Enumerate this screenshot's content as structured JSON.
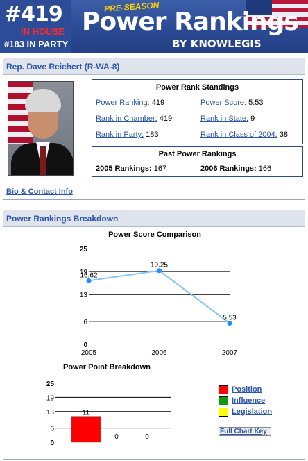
{
  "banner": {
    "rank_number": "#419",
    "rank_scope": "IN HOUSE",
    "party_rank": "#183 IN PARTY",
    "pre_season": "PRE-SEASON",
    "title": "Power Rankings",
    "subtitle": "BY KNOWLEGIS"
  },
  "profile": {
    "heading": "Rep. Dave Reichert (R-WA-8)",
    "bio_link": "Bio & Contact Info",
    "standings": {
      "title": "Power Rank Standings",
      "items": [
        {
          "label": "Power Ranking:",
          "value": "419"
        },
        {
          "label": "Power Score:",
          "value": "5.53"
        },
        {
          "label": "Rank in Chamber:",
          "value": "419"
        },
        {
          "label": "Rank in State:",
          "value": "9"
        },
        {
          "label": "Rank in Party:",
          "value": "183"
        },
        {
          "label": "Rank in Class of 2004:",
          "value": "38"
        }
      ]
    },
    "past": {
      "title": "Past Power Rankings",
      "items": [
        {
          "label": "2005 Rankings:",
          "value": "167"
        },
        {
          "label": "2006 Rankings:",
          "value": "166"
        }
      ]
    }
  },
  "breakdown": {
    "heading": "Power Rankings Breakdown",
    "legend": [
      {
        "label": "Position",
        "color": "#ff0000"
      },
      {
        "label": "Influence",
        "color": "#119911"
      },
      {
        "label": "Legislation",
        "color": "#ffff00"
      }
    ],
    "full_key": "Full Chart Key"
  },
  "chart_data": [
    {
      "type": "line",
      "title": "Power Score Comparison",
      "x": [
        "2005",
        "2006",
        "2007"
      ],
      "series": [
        {
          "values": [
            16.62,
            19.25,
            5.53
          ]
        }
      ],
      "data_labels": [
        "16.62",
        "19.25",
        "5.53"
      ],
      "y_ticks": [
        "25",
        "19",
        "13",
        "6",
        "0"
      ],
      "y_tick_values": [
        25,
        19,
        13,
        6,
        0
      ],
      "ylim": [
        0,
        25
      ],
      "grid": true,
      "line_color": "#88c4ee",
      "point_color": "#1e90ff"
    },
    {
      "type": "bar",
      "title": "Power Point Breakdown",
      "categories": [
        "Position",
        "Influence",
        "Legislation"
      ],
      "values": [
        11,
        0,
        0
      ],
      "data_labels": [
        "11",
        "0",
        "0"
      ],
      "colors": [
        "#ff0000",
        "#119911",
        "#ffff00"
      ],
      "y_ticks": [
        "25",
        "19",
        "13",
        "6",
        "0"
      ],
      "y_tick_values": [
        25,
        19,
        13,
        6,
        0
      ],
      "ylim": [
        0,
        25
      ],
      "grid": true
    }
  ]
}
